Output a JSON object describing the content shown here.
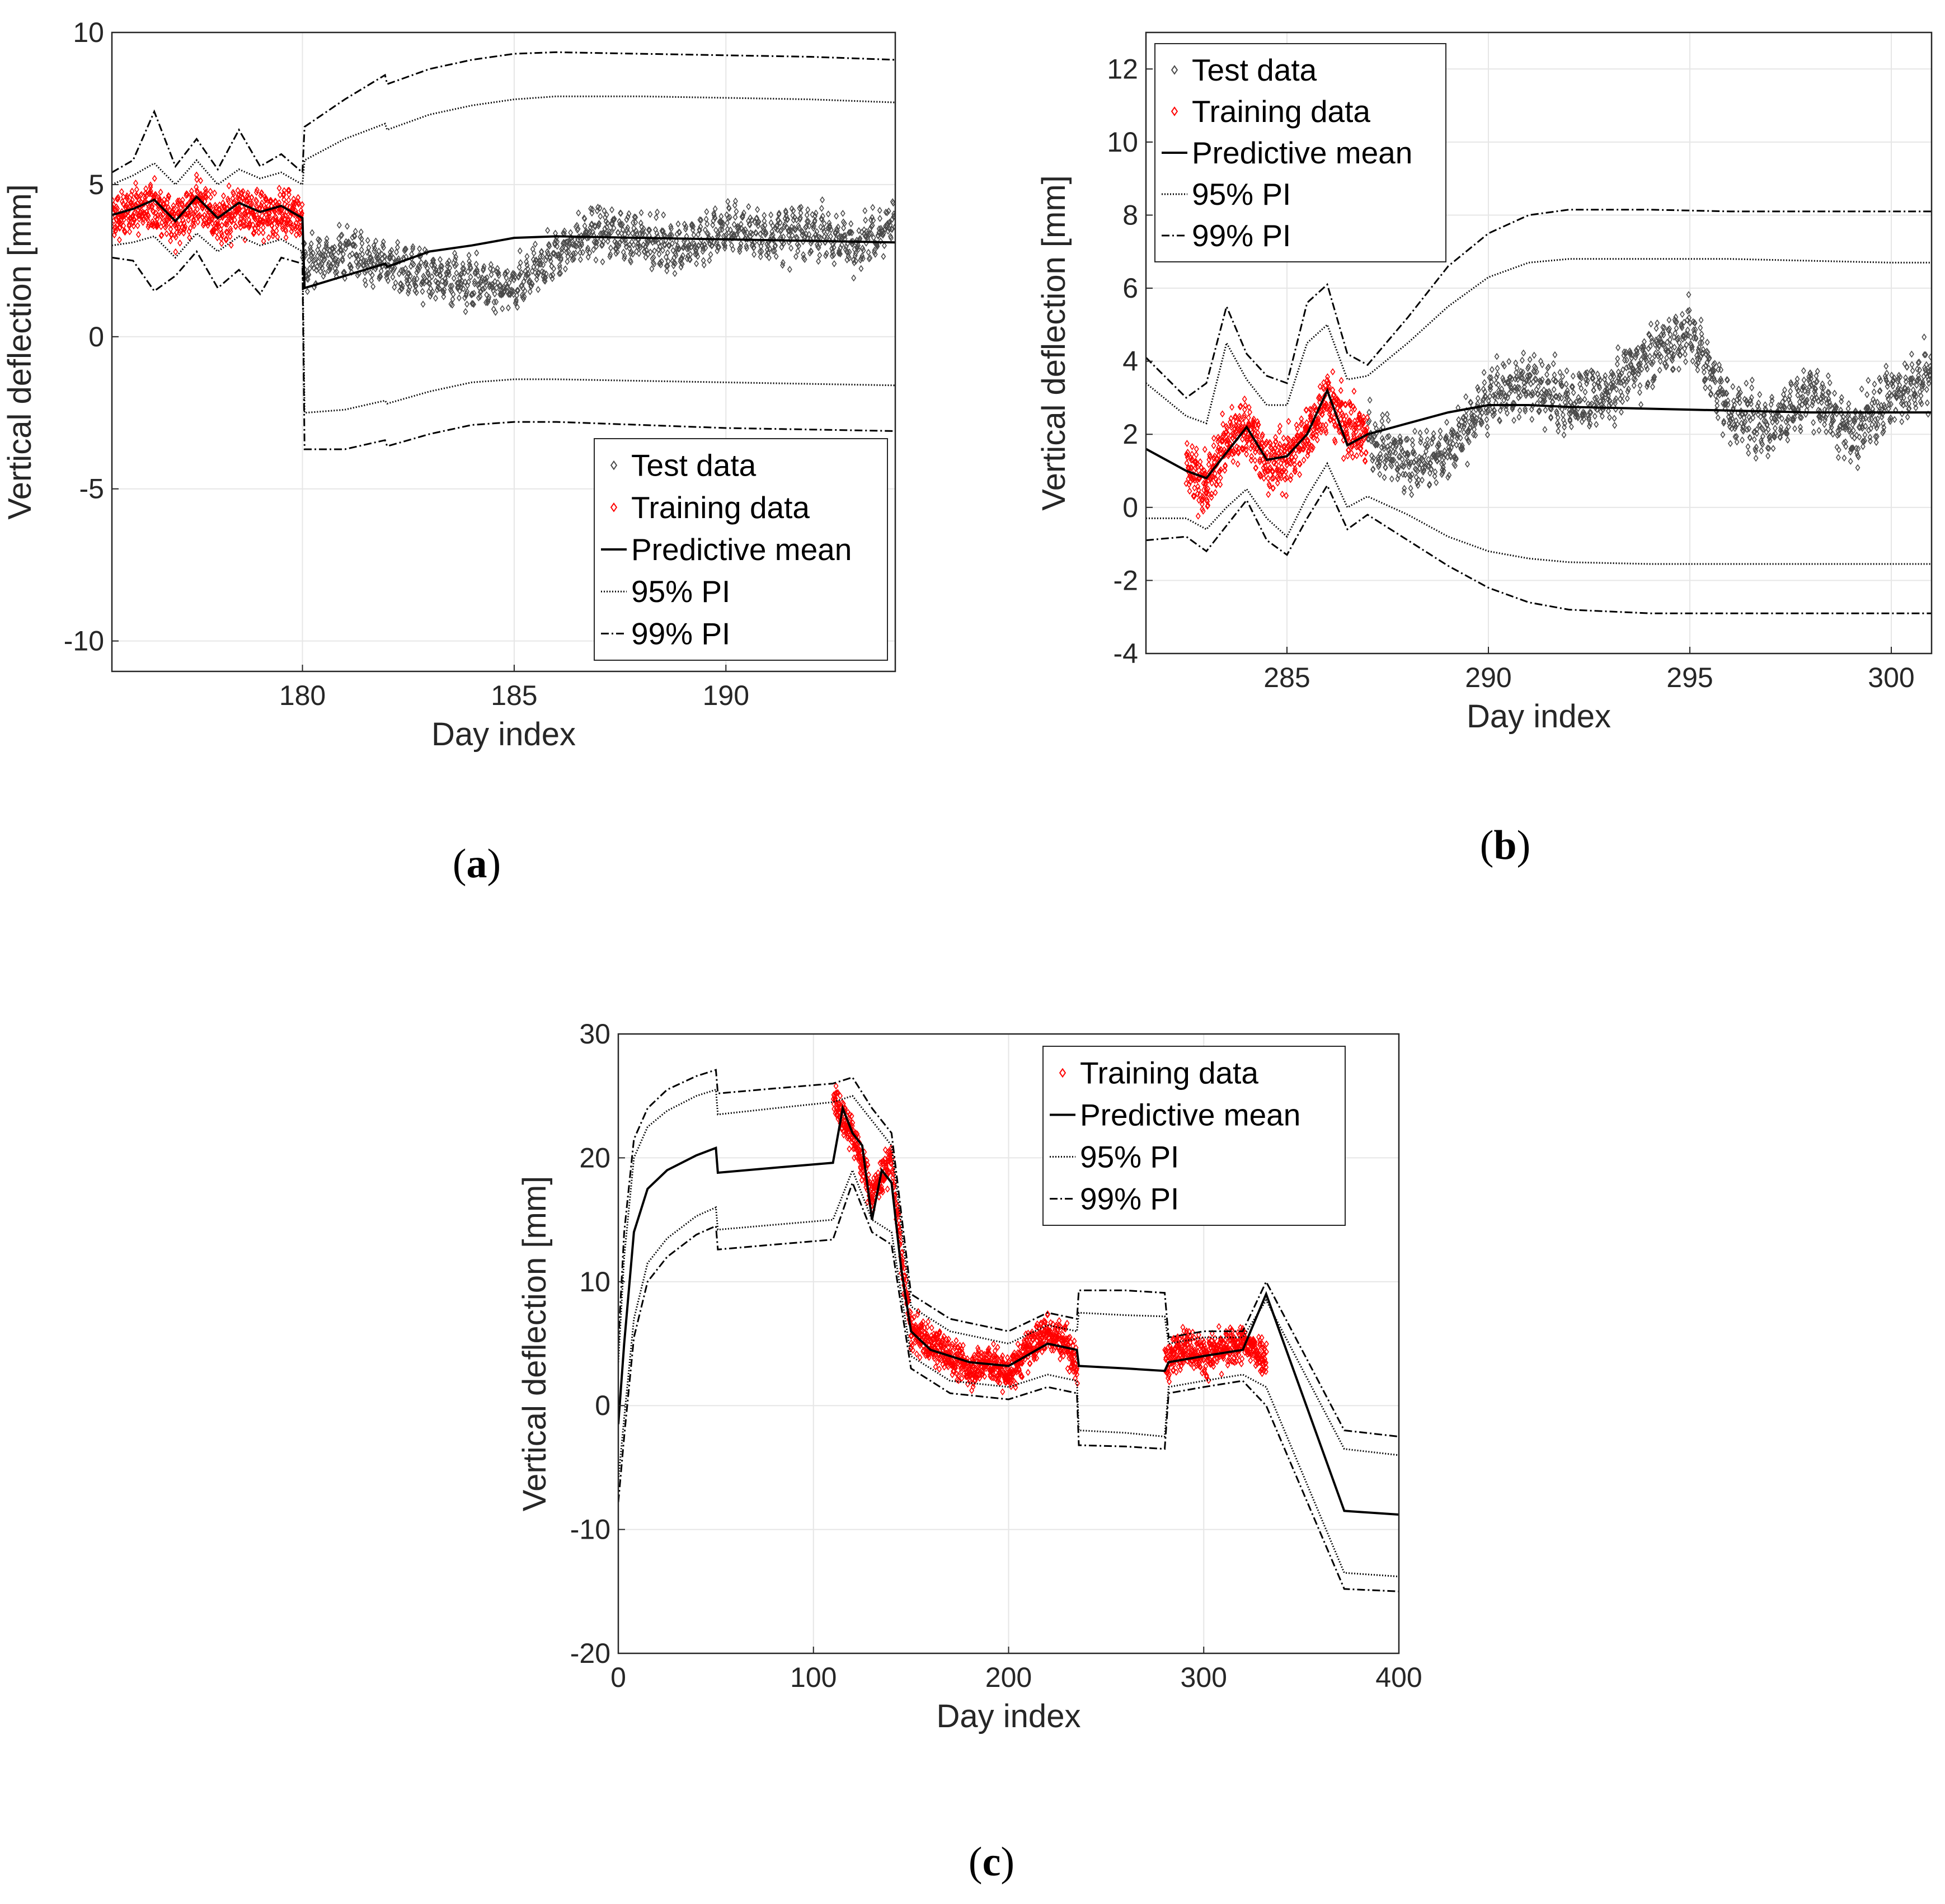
{
  "figure": {
    "panels": [
      "a",
      "b",
      "c"
    ]
  },
  "chart_data": [
    {
      "type": "line",
      "panel": "a",
      "caption": "a",
      "xlabel": "Day index",
      "ylabel": "Vertical deflection [mm]",
      "xlim": [
        175.5,
        194
      ],
      "ylim": [
        -11,
        10
      ],
      "xticks": [
        180,
        185,
        190
      ],
      "yticks": [
        -10,
        -5,
        0,
        5,
        10
      ],
      "grid": true,
      "legend_position": "bottom-right",
      "legend": [
        "Test data",
        "Training data",
        "Predictive mean",
        "95% PI",
        "99% PI"
      ],
      "training_range": [
        175.5,
        180
      ],
      "test_range": [
        180,
        194
      ],
      "series": [
        {
          "name": "Predictive mean",
          "style": "solid",
          "x": [
            175.5,
            176,
            176.5,
            177,
            177.5,
            178,
            178.5,
            179,
            179.5,
            180,
            180.05,
            181,
            181.95,
            182,
            183,
            184,
            185,
            186,
            188,
            190,
            192,
            194
          ],
          "y": [
            4.0,
            4.2,
            4.5,
            3.8,
            4.6,
            3.9,
            4.4,
            4.1,
            4.3,
            3.9,
            1.6,
            2.0,
            2.4,
            2.3,
            2.8,
            3.0,
            3.25,
            3.3,
            3.25,
            3.2,
            3.15,
            3.1
          ]
        },
        {
          "name": "95% PI upper",
          "style": "dotted",
          "x": [
            175.5,
            176,
            176.5,
            177,
            177.5,
            178,
            178.5,
            179,
            179.5,
            180,
            180.05,
            181,
            181.95,
            182,
            183,
            184,
            185,
            186,
            188,
            190,
            192,
            194
          ],
          "y": [
            5.0,
            5.3,
            5.7,
            5.0,
            5.8,
            5.0,
            5.5,
            5.2,
            5.4,
            5.0,
            5.8,
            6.5,
            7.0,
            6.8,
            7.3,
            7.6,
            7.8,
            7.9,
            7.9,
            7.85,
            7.8,
            7.7
          ]
        },
        {
          "name": "95% PI lower",
          "style": "dotted",
          "x": [
            175.5,
            176,
            176.5,
            177,
            177.5,
            178,
            178.5,
            179,
            179.5,
            180,
            180.05,
            181,
            181.95,
            182,
            183,
            184,
            185,
            186,
            188,
            190,
            192,
            194
          ],
          "y": [
            3.0,
            3.1,
            3.3,
            2.6,
            3.4,
            2.8,
            3.3,
            3.0,
            3.2,
            2.8,
            -2.5,
            -2.4,
            -2.1,
            -2.2,
            -1.8,
            -1.5,
            -1.4,
            -1.4,
            -1.45,
            -1.5,
            -1.55,
            -1.6
          ]
        },
        {
          "name": "99% PI upper",
          "style": "dashdot",
          "x": [
            175.5,
            176,
            176.5,
            177,
            177.5,
            178,
            178.5,
            179,
            179.5,
            180,
            180.05,
            181,
            181.95,
            182,
            183,
            184,
            185,
            186,
            188,
            190,
            192,
            194
          ],
          "y": [
            5.4,
            5.8,
            7.4,
            5.6,
            6.5,
            5.5,
            6.8,
            5.6,
            6.0,
            5.4,
            6.9,
            7.8,
            8.6,
            8.3,
            8.8,
            9.1,
            9.3,
            9.35,
            9.3,
            9.25,
            9.2,
            9.1
          ]
        },
        {
          "name": "99% PI lower",
          "style": "dashdot",
          "x": [
            175.5,
            176,
            176.5,
            177,
            177.5,
            178,
            178.5,
            179,
            179.5,
            180,
            180.05,
            181,
            181.95,
            182,
            183,
            184,
            185,
            186,
            188,
            190,
            192,
            194
          ],
          "y": [
            2.6,
            2.5,
            1.5,
            2.0,
            2.8,
            1.6,
            2.2,
            1.4,
            2.6,
            2.4,
            -3.7,
            -3.7,
            -3.4,
            -3.6,
            -3.2,
            -2.9,
            -2.8,
            -2.8,
            -2.9,
            -3.0,
            -3.05,
            -3.1
          ]
        },
        {
          "name": "Test data",
          "style": "scatter",
          "x": [
            180,
            181,
            182,
            183,
            184,
            185,
            186,
            187,
            188,
            189,
            190,
            191,
            192,
            193,
            194
          ],
          "y": [
            2.3,
            2.8,
            2.4,
            2.0,
            1.8,
            1.5,
            2.8,
            3.5,
            3.2,
            2.9,
            3.6,
            3.3,
            3.5,
            3.0,
            3.8
          ]
        },
        {
          "name": "Training data",
          "style": "scatter",
          "x": [
            175.5,
            176,
            176.5,
            177,
            177.5,
            178,
            178.5,
            179,
            179.5,
            180
          ],
          "y": [
            3.9,
            4.1,
            4.3,
            3.7,
            4.5,
            3.8,
            4.2,
            4.0,
            4.1,
            3.9
          ]
        }
      ]
    },
    {
      "type": "line",
      "panel": "b",
      "caption": "b",
      "xlabel": "Day index",
      "ylabel": "Vertical deflection [mm]",
      "xlim": [
        281.5,
        301
      ],
      "ylim": [
        -4,
        13
      ],
      "xticks": [
        285,
        290,
        295,
        300
      ],
      "yticks": [
        -4,
        -2,
        0,
        2,
        4,
        6,
        8,
        10,
        12
      ],
      "grid": true,
      "legend_position": "top-left",
      "legend": [
        "Test data",
        "Training data",
        "Predictive mean",
        "95% PI",
        "99% PI"
      ],
      "training_range": [
        282.5,
        287
      ],
      "test_range": [
        281.5,
        301
      ],
      "series": [
        {
          "name": "Predictive mean",
          "style": "solid",
          "x": [
            281.5,
            282.5,
            283,
            283.5,
            284,
            284.5,
            285,
            285.5,
            286,
            286.5,
            287,
            288,
            289,
            290,
            291,
            292,
            294,
            296,
            298,
            300,
            301
          ],
          "y": [
            1.6,
            1.0,
            0.8,
            1.5,
            2.2,
            1.3,
            1.4,
            2.0,
            3.2,
            1.7,
            2.0,
            2.3,
            2.6,
            2.8,
            2.8,
            2.75,
            2.7,
            2.65,
            2.6,
            2.6,
            2.6
          ]
        },
        {
          "name": "95% PI upper",
          "style": "dotted",
          "x": [
            281.5,
            282.5,
            283,
            283.5,
            284,
            284.5,
            285,
            285.5,
            286,
            286.5,
            287,
            288,
            289,
            290,
            291,
            292,
            294,
            296,
            298,
            300,
            301
          ],
          "y": [
            3.4,
            2.5,
            2.3,
            4.5,
            3.5,
            2.8,
            2.8,
            4.5,
            5.0,
            3.5,
            3.6,
            4.5,
            5.5,
            6.3,
            6.7,
            6.8,
            6.8,
            6.8,
            6.75,
            6.7,
            6.7
          ]
        },
        {
          "name": "95% PI lower",
          "style": "dotted",
          "x": [
            281.5,
            282.5,
            283,
            283.5,
            284,
            284.5,
            285,
            285.5,
            286,
            286.5,
            287,
            288,
            289,
            290,
            291,
            292,
            294,
            296,
            298,
            300,
            301
          ],
          "y": [
            -0.3,
            -0.3,
            -0.6,
            0.0,
            0.5,
            -0.3,
            -0.8,
            0.3,
            1.2,
            0.0,
            0.3,
            -0.2,
            -0.8,
            -1.2,
            -1.4,
            -1.5,
            -1.55,
            -1.55,
            -1.55,
            -1.55,
            -1.55
          ]
        },
        {
          "name": "99% PI upper",
          "style": "dashdot",
          "x": [
            281.5,
            282.5,
            283,
            283.5,
            284,
            284.5,
            285,
            285.5,
            286,
            286.5,
            287,
            288,
            289,
            290,
            291,
            292,
            294,
            296,
            298,
            300,
            301
          ],
          "y": [
            4.1,
            3.0,
            3.4,
            5.5,
            4.2,
            3.6,
            3.4,
            5.6,
            6.1,
            4.2,
            3.9,
            5.2,
            6.6,
            7.5,
            8.0,
            8.15,
            8.15,
            8.1,
            8.1,
            8.1,
            8.1
          ]
        },
        {
          "name": "99% PI lower",
          "style": "dashdot",
          "x": [
            281.5,
            282.5,
            283,
            283.5,
            284,
            284.5,
            285,
            285.5,
            286,
            286.5,
            287,
            288,
            289,
            290,
            291,
            292,
            294,
            296,
            298,
            300,
            301
          ],
          "y": [
            -0.9,
            -0.8,
            -1.2,
            -0.5,
            0.2,
            -0.9,
            -1.3,
            -0.3,
            0.6,
            -0.6,
            -0.2,
            -0.9,
            -1.6,
            -2.2,
            -2.6,
            -2.8,
            -2.9,
            -2.9,
            -2.9,
            -2.9,
            -2.9
          ]
        },
        {
          "name": "Test data",
          "style": "scatter",
          "x": [
            287,
            288,
            289,
            290,
            291,
            292,
            293,
            294,
            295,
            296,
            297,
            298,
            299,
            300,
            301
          ],
          "y": [
            1.9,
            1.2,
            1.5,
            3.0,
            3.4,
            2.8,
            3.2,
            4.2,
            4.8,
            2.6,
            2.2,
            3.2,
            2.0,
            3.1,
            3.5
          ]
        },
        {
          "name": "Training data",
          "style": "scatter",
          "x": [
            282.5,
            283,
            283.5,
            284,
            284.5,
            285,
            285.5,
            286,
            286.5,
            287
          ],
          "y": [
            1.0,
            0.6,
            1.8,
            2.2,
            1.2,
            1.3,
            2.0,
            3.0,
            2.2,
            1.9
          ]
        }
      ]
    },
    {
      "type": "line",
      "panel": "c",
      "caption": "c",
      "xlabel": "Day index",
      "ylabel": "Vertical deflection [mm]",
      "xlim": [
        0,
        400
      ],
      "ylim": [
        -20,
        30
      ],
      "xticks": [
        0,
        100,
        200,
        300,
        400
      ],
      "yticks": [
        -20,
        -10,
        0,
        10,
        20,
        30
      ],
      "grid": true,
      "legend_position": "top-right",
      "legend": [
        "Training data",
        "Predictive mean",
        "95% PI",
        "99% PI"
      ],
      "training_ranges": [
        [
          110,
          235
        ],
        [
          280,
          332
        ]
      ],
      "series": [
        {
          "name": "Predictive mean",
          "style": "solid",
          "x": [
            0,
            3,
            8,
            15,
            25,
            40,
            50,
            51,
            80,
            110,
            115,
            120,
            125,
            130,
            135,
            140,
            145,
            150,
            160,
            180,
            200,
            220,
            235,
            236,
            260,
            280,
            282,
            300,
            320,
            332,
            372,
            400
          ],
          "y": [
            -1.5,
            5,
            14,
            17.5,
            19,
            20.2,
            20.8,
            18.8,
            19.2,
            19.6,
            24,
            22,
            21,
            15,
            19,
            18,
            11,
            6,
            4.5,
            3.5,
            3.2,
            5,
            4.5,
            3.2,
            3,
            2.8,
            3.5,
            4,
            4.5,
            9,
            -8.5,
            -8.8
          ]
        },
        {
          "name": "95% PI upper",
          "style": "dotted",
          "x": [
            0,
            3,
            8,
            15,
            25,
            40,
            50,
            51,
            80,
            110,
            120,
            130,
            140,
            150,
            170,
            200,
            220,
            235,
            236,
            260,
            280,
            282,
            300,
            320,
            332,
            372,
            400
          ],
          "y": [
            3.5,
            12,
            20,
            22.5,
            23.8,
            25,
            25.5,
            23.5,
            24,
            24.5,
            25,
            23,
            21,
            8,
            6,
            5,
            6.5,
            6,
            7.5,
            7.3,
            7.2,
            5,
            5.5,
            5.5,
            8.5,
            -3.5,
            -4
          ]
        },
        {
          "name": "95% PI lower",
          "style": "dotted",
          "x": [
            0,
            3,
            8,
            15,
            25,
            40,
            50,
            51,
            80,
            110,
            120,
            130,
            140,
            150,
            170,
            200,
            220,
            235,
            236,
            260,
            280,
            282,
            300,
            320,
            332,
            372,
            400
          ],
          "y": [
            -6,
            -1,
            7,
            11.5,
            13.5,
            15.3,
            16,
            14.2,
            14.6,
            15,
            19,
            15,
            14,
            4,
            2,
            1.5,
            2.5,
            2,
            -2,
            -2.2,
            -2.5,
            1.5,
            2,
            2.5,
            1.5,
            -13.5,
            -13.8
          ]
        },
        {
          "name": "99% PI upper",
          "style": "dashdot",
          "x": [
            0,
            3,
            8,
            15,
            25,
            40,
            50,
            51,
            80,
            110,
            120,
            130,
            140,
            150,
            170,
            200,
            220,
            235,
            236,
            260,
            280,
            282,
            300,
            320,
            332,
            372,
            400
          ],
          "y": [
            5,
            14,
            21.5,
            24,
            25.5,
            26.6,
            27.1,
            25.2,
            25.6,
            26,
            26.5,
            24,
            22,
            9,
            7,
            6,
            7.5,
            7,
            9.3,
            9.3,
            9.1,
            5.5,
            6,
            6,
            10,
            -2,
            -2.5
          ]
        },
        {
          "name": "99% PI lower",
          "style": "dashdot",
          "x": [
            0,
            3,
            8,
            15,
            25,
            40,
            50,
            51,
            80,
            110,
            120,
            130,
            140,
            150,
            170,
            200,
            220,
            235,
            236,
            260,
            280,
            282,
            300,
            320,
            332,
            372,
            400
          ],
          "y": [
            -7.8,
            -2.5,
            5.5,
            10,
            12,
            13.8,
            14.5,
            12.6,
            13,
            13.4,
            18,
            14,
            13,
            3,
            1,
            0.5,
            1.5,
            1,
            -3.2,
            -3.3,
            -3.5,
            1,
            1.5,
            2,
            0,
            -14.8,
            -15
          ]
        },
        {
          "name": "Training data",
          "style": "scatter",
          "x": [
            110,
            120,
            130,
            140,
            145,
            150,
            160,
            170,
            180,
            190,
            200,
            210,
            220,
            230,
            235,
            282,
            290,
            300,
            310,
            320,
            332
          ],
          "y": [
            25,
            22,
            17,
            20,
            12,
            6,
            5,
            4,
            3,
            3.5,
            2.5,
            4.5,
            6,
            5,
            3,
            3.5,
            5,
            4,
            4.5,
            5,
            4
          ]
        }
      ]
    }
  ]
}
